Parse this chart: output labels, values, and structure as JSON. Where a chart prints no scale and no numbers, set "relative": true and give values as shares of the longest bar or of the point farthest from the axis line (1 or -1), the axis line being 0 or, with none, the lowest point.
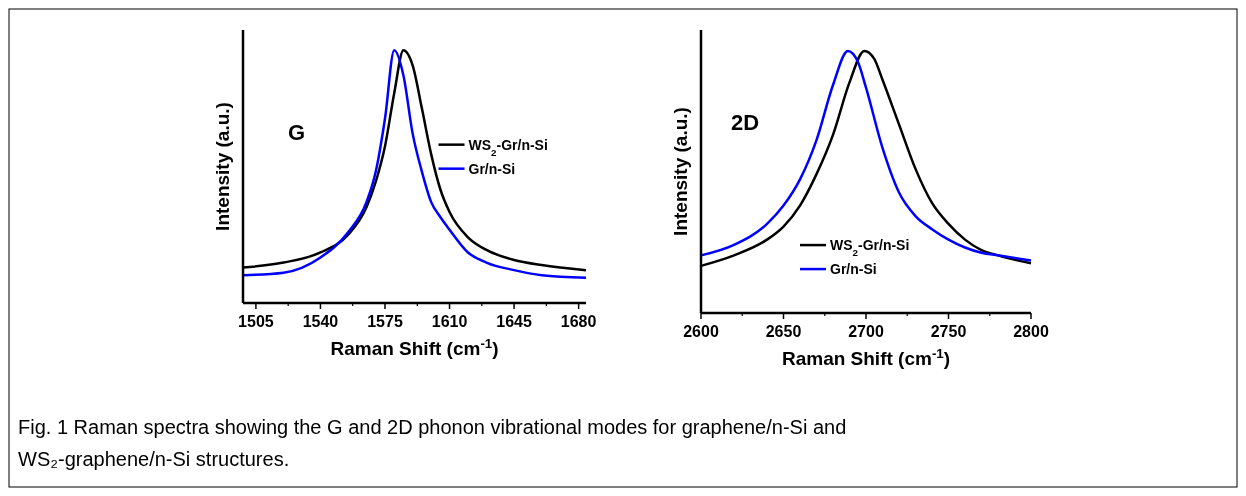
{
  "chart_data": [
    {
      "type": "line",
      "relative": true,
      "xlabel": "Raman Shift (cm$^{-1}$)",
      "ylabel": "Intensity (a.u.)",
      "xlim": [
        1498,
        1684
      ],
      "xticks": [
        1505,
        1540,
        1575,
        1610,
        1645,
        1680
      ],
      "tick_labels": "x",
      "legend": "right",
      "grid": false,
      "annotations": [
        "G",
        "Fig. 1 Raman spectra showing the G and 2D phonon vibrational modes for graphene/n-Si and WS₂-graphene/n-Si structures."
      ],
      "series": [
        {
          "name": "WS$_{2}$-Gr/n-Si",
          "color": "#000000",
          "x": [
            1498,
            1520,
            1540,
            1555,
            1565,
            1570,
            1575,
            1580,
            1585,
            1590,
            1595,
            1600,
            1605,
            1610,
            1620,
            1630,
            1645,
            1660,
            1684
          ],
          "values": [
            0.14,
            0.16,
            0.2,
            0.27,
            0.38,
            0.48,
            0.62,
            0.83,
            1.0,
            0.94,
            0.77,
            0.59,
            0.45,
            0.36,
            0.26,
            0.21,
            0.17,
            0.15,
            0.13
          ]
        },
        {
          "name": "Gr/n-Si",
          "color": "#0000ff",
          "x": [
            1498,
            1520,
            1540,
            1555,
            1565,
            1570,
            1575,
            1580,
            1585,
            1590,
            1595,
            1600,
            1605,
            1610,
            1620,
            1630,
            1645,
            1660,
            1684
          ],
          "values": [
            0.11,
            0.12,
            0.18,
            0.28,
            0.4,
            0.52,
            0.73,
            1.0,
            0.9,
            0.67,
            0.52,
            0.4,
            0.34,
            0.29,
            0.2,
            0.16,
            0.13,
            0.11,
            0.1
          ]
        }
      ]
    },
    {
      "type": "line",
      "relative": true,
      "xlabel": "Raman Shift (cm$^{-1}$)",
      "ylabel": "Intensity (a.u.)",
      "xlim": [
        2600,
        2800
      ],
      "xticks": [
        2600,
        2650,
        2700,
        2750,
        2800
      ],
      "tick_labels": "x",
      "legend": "bottom",
      "grid": false,
      "annotations": [
        "2D"
      ],
      "series": [
        {
          "name": "WS$_{2}$-Gr/n-Si",
          "color": "#000000",
          "x": [
            2600,
            2620,
            2640,
            2650,
            2660,
            2670,
            2680,
            2690,
            2699,
            2705,
            2710,
            2720,
            2730,
            2740,
            2750,
            2760,
            2770,
            2780,
            2800
          ],
          "values": [
            0.18,
            0.22,
            0.28,
            0.33,
            0.41,
            0.53,
            0.68,
            0.88,
            1.0,
            0.97,
            0.89,
            0.72,
            0.55,
            0.42,
            0.34,
            0.28,
            0.24,
            0.22,
            0.19
          ]
        },
        {
          "name": "Gr/n-Si",
          "color": "#0000ff",
          "x": [
            2600,
            2620,
            2640,
            2650,
            2660,
            2670,
            2680,
            2689,
            2695,
            2700,
            2710,
            2720,
            2730,
            2740,
            2750,
            2760,
            2770,
            2780,
            2800
          ],
          "values": [
            0.22,
            0.26,
            0.34,
            0.41,
            0.51,
            0.66,
            0.87,
            1.0,
            0.96,
            0.86,
            0.63,
            0.46,
            0.37,
            0.32,
            0.28,
            0.25,
            0.23,
            0.22,
            0.2
          ]
        }
      ]
    }
  ]
}
